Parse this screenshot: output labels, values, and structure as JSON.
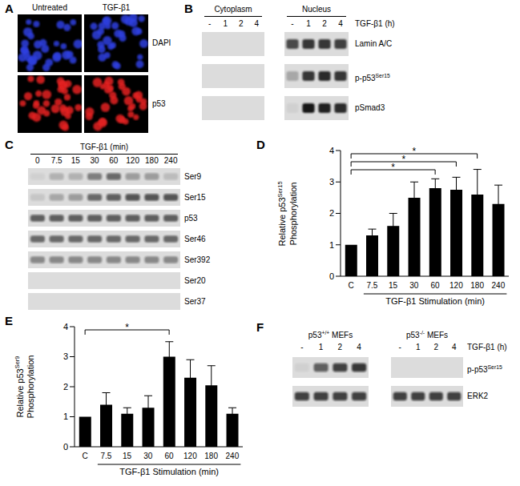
{
  "panel_letters": [
    "A",
    "B",
    "C",
    "D",
    "E",
    "F"
  ],
  "panels": {
    "A": {
      "columns": [
        "Untreated",
        "TGF-β1"
      ],
      "rows": [
        {
          "label": "DAPI",
          "color": "#2f3fe0"
        },
        {
          "label": "p53",
          "color": "#e42222"
        }
      ]
    },
    "B": {
      "groups": [
        "Cytoplasm",
        "Nucleus"
      ],
      "lanes": [
        "-",
        "1",
        "2",
        "4",
        "-",
        "1",
        "2",
        "4"
      ],
      "treatment": "TGF-β1 (h)",
      "rows": [
        {
          "label": "Lamin A/C",
          "bands": [
            0,
            0,
            0,
            0,
            0.7,
            0.8,
            0.8,
            0.75
          ]
        },
        {
          "label": [
            "p-p53",
            {
              "sup": "Ser15"
            }
          ],
          "bands": [
            0,
            0,
            0,
            0,
            0.25,
            0.8,
            0.85,
            0.8
          ]
        },
        {
          "label": "pSmad3",
          "bands": [
            0,
            0,
            0,
            0,
            0.05,
            0.95,
            0.9,
            0.85
          ]
        }
      ]
    },
    "C": {
      "groups": [
        "TGF-β1 (min)"
      ],
      "lanes": [
        "0",
        "7.5",
        "15",
        "30",
        "60",
        "120",
        "180",
        "240"
      ],
      "rows": [
        {
          "label": "Ser9",
          "bands": [
            0.05,
            0.2,
            0.2,
            0.45,
            0.55,
            0.3,
            0.3,
            0.15
          ]
        },
        {
          "label": "Ser15",
          "bands": [
            0.1,
            0.25,
            0.3,
            0.55,
            0.6,
            0.65,
            0.65,
            0.65
          ]
        },
        {
          "label": "p53",
          "bands": [
            0.6,
            0.6,
            0.6,
            0.6,
            0.6,
            0.6,
            0.6,
            0.6
          ]
        },
        {
          "label": "Ser46",
          "bands": [
            0.55,
            0.55,
            0.55,
            0.55,
            0.55,
            0.55,
            0.55,
            0.55
          ]
        },
        {
          "label": "Ser392",
          "bands": [
            0.4,
            0.4,
            0.4,
            0.4,
            0.4,
            0.4,
            0.4,
            0.4
          ]
        },
        {
          "label": "Ser20",
          "bands": [
            0,
            0,
            0,
            0,
            0,
            0,
            0,
            0
          ]
        },
        {
          "label": "Ser37",
          "bands": [
            0,
            0,
            0,
            0,
            0,
            0,
            0,
            0
          ]
        }
      ]
    },
    "F": {
      "groups": [
        [
          "p53",
          {
            "sup": "+/+"
          },
          " MEFs"
        ],
        [
          "p53",
          {
            "sup": "-/-"
          },
          " MEFs"
        ]
      ],
      "lanes": [
        "-",
        "1",
        "2",
        "4",
        "-",
        "1",
        "2",
        "4"
      ],
      "treatment": "TGF-β1 (h)",
      "rows": [
        {
          "label": [
            "p-p53",
            {
              "sup": "Ser15"
            }
          ],
          "bands": [
            0.05,
            0.6,
            0.75,
            0.8,
            0,
            0,
            0,
            0
          ]
        },
        {
          "label": "ERK2",
          "bands": [
            0.75,
            0.75,
            0.75,
            0.75,
            0.75,
            0.75,
            0.75,
            0.75
          ]
        }
      ]
    }
  },
  "chart_data": [
    {
      "type": "bar",
      "categories": [
        "C",
        "7.5",
        "15",
        "30",
        "60",
        "120",
        "180",
        "240"
      ],
      "values": [
        1,
        1.3,
        1.6,
        2.5,
        2.8,
        2.75,
        2.6,
        2.3
      ],
      "errors": [
        0,
        0.2,
        0.4,
        0.5,
        0.3,
        0.4,
        0.8,
        0.6
      ],
      "color": "#000000",
      "ylim": [
        0,
        4
      ],
      "yticks": [
        0,
        1,
        2,
        3,
        4
      ],
      "ylabel": [
        [
          "Relative p53",
          {
            "sup": "Ser15"
          }
        ],
        "Phosphorylation"
      ],
      "xlabel": "TGF-β1 Stimulation (min)",
      "significance": [
        {
          "from": "C",
          "to": "60",
          "label": "*"
        },
        {
          "from": "C",
          "to": "120",
          "label": "*"
        },
        {
          "from": "C",
          "to": "180",
          "label": "*"
        }
      ]
    },
    {
      "type": "bar",
      "categories": [
        "C",
        "7.5",
        "15",
        "30",
        "60",
        "120",
        "180",
        "240"
      ],
      "values": [
        1,
        1.4,
        1.1,
        1.3,
        3.0,
        2.3,
        2.05,
        1.1
      ],
      "errors": [
        0,
        0.4,
        0.2,
        0.4,
        0.5,
        0.6,
        0.65,
        0.2
      ],
      "color": "#000000",
      "ylim": [
        0,
        4
      ],
      "yticks": [
        0,
        1,
        2,
        3,
        4
      ],
      "ylabel": [
        [
          "Relative p53",
          {
            "sup": "Ser9"
          }
        ],
        "Phosphorylation"
      ],
      "xlabel": "TGF-β1 Stimulation (min)",
      "significance": [
        {
          "from": "C",
          "to": "60",
          "label": "*"
        }
      ]
    }
  ]
}
